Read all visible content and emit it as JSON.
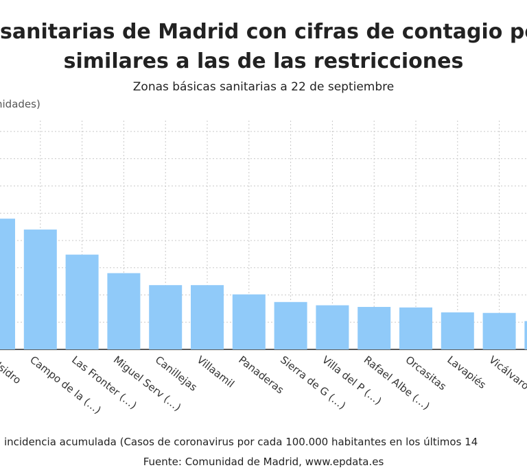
{
  "header": {
    "title_line1": "sanitarias de Madrid con cifras de contagio por",
    "title_line2": "similares a las de las restricciones",
    "subtitle": "Zonas básicas sanitarias a 22 de septiembre"
  },
  "colors": {
    "bar": "#90caf9",
    "grid": "#c8c8c8",
    "axis": "#222222"
  },
  "chart_data": {
    "type": "bar",
    "title": "sanitarias de Madrid con cifras de contagio por similares a las de las restricciones",
    "subtitle": "Zonas básicas sanitarias a 22 de septiembre",
    "ylabel": "nidades)",
    "xlabel": "a incidencia acumulada (Casos de coronavirus por cada 100.000 habitantes en los últimos 14",
    "categories": [
      "n Isidro",
      "Campo de la (…)",
      "Las Fronter (…)",
      "Miguel Serv (…)",
      "Canillejas",
      "Villaamil",
      "Panaderas",
      "Sierra de G (…)",
      "Villa del P (…)",
      "Rafael Albe (…)",
      "Orcasitas",
      "Lavapiés",
      "Vicálvaro",
      ""
    ],
    "values": [
      1200,
      1100,
      870,
      700,
      590,
      590,
      505,
      435,
      405,
      390,
      385,
      340,
      335,
      260
    ],
    "ylim": [
      0,
      2100
    ],
    "grid": true,
    "legend": "none"
  },
  "source": "Fuente: Comunidad de Madrid, www.epdata.es"
}
